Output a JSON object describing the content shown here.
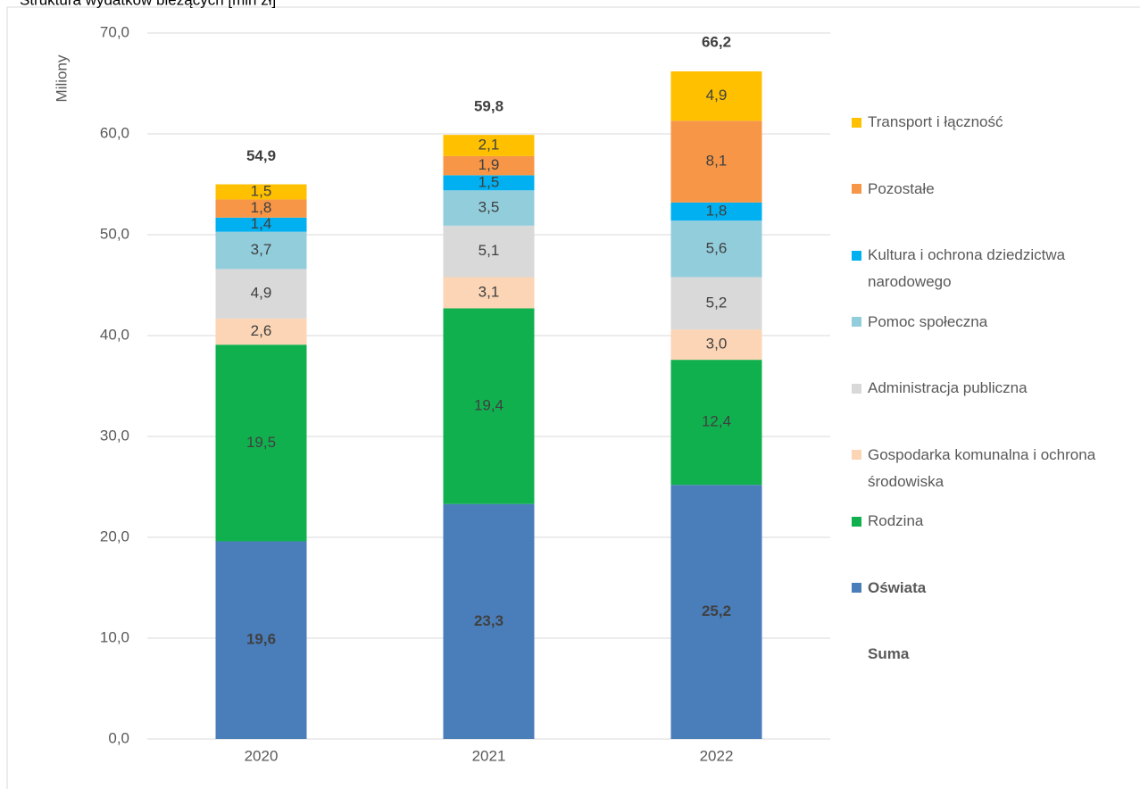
{
  "chart_data": {
    "type": "stacked_bar",
    "title": "Struktura wydatków bieżących [mln zł]",
    "y_label": "Miliony",
    "categories": [
      "2020",
      "2021",
      "2022"
    ],
    "series": [
      {
        "name": "Oświata",
        "color": "#4a7ebb",
        "values": [
          19.6,
          23.3,
          25.2
        ],
        "value_labels": [
          "19,6",
          "23,3",
          "25,2"
        ]
      },
      {
        "name": "Rodzina",
        "color": "#11b04f",
        "values": [
          19.5,
          19.4,
          12.4
        ],
        "value_labels": [
          "19,5",
          "19,4",
          "12,4"
        ]
      },
      {
        "name": "Gospodarka komunalna i ochrona środowiska",
        "color": "#fbd5b5",
        "values": [
          2.6,
          3.1,
          3.0
        ],
        "value_labels": [
          "2,6",
          "3,1",
          "3,0"
        ]
      },
      {
        "name": "Administracja publiczna",
        "color": "#d9d9d9",
        "values": [
          4.9,
          5.1,
          5.2
        ],
        "value_labels": [
          "4,9",
          "5,1",
          "5,2"
        ]
      },
      {
        "name": "Pomoc społeczna",
        "color": "#92cddc",
        "values": [
          3.7,
          3.5,
          5.6
        ],
        "value_labels": [
          "3,7",
          "3,5",
          "5,6"
        ]
      },
      {
        "name": "Kultura i ochrona dziedzictwa narodowego",
        "color": "#00b0f0",
        "values": [
          1.4,
          1.5,
          1.8
        ],
        "value_labels": [
          "1,4",
          "1,5",
          "1,8"
        ]
      },
      {
        "name": "Pozostałe",
        "color": "#f79646",
        "values": [
          1.8,
          1.9,
          8.1
        ],
        "value_labels": [
          "1,8",
          "1,9",
          "8,1"
        ]
      },
      {
        "name": "Transport i łączność",
        "color": "#ffc000",
        "values": [
          1.5,
          2.1,
          4.9
        ],
        "value_labels": [
          "1,5",
          "2,1",
          "4,9"
        ]
      }
    ],
    "totals": {
      "name": "Suma",
      "values": [
        54.9,
        59.8,
        66.2
      ],
      "value_labels": [
        "54,9",
        "59,8",
        "66,2"
      ]
    },
    "ylim": [
      0,
      70
    ],
    "yticks": [
      {
        "value": 0,
        "label": "0,0"
      },
      {
        "value": 10,
        "label": "10,0"
      },
      {
        "value": 20,
        "label": "20,0"
      },
      {
        "value": 30,
        "label": "30,0"
      },
      {
        "value": 40,
        "label": "40,0"
      },
      {
        "value": 50,
        "label": "50,0"
      },
      {
        "value": 60,
        "label": "60,0"
      },
      {
        "value": 70,
        "label": "70,0"
      }
    ],
    "grid": true,
    "legend": "right"
  }
}
